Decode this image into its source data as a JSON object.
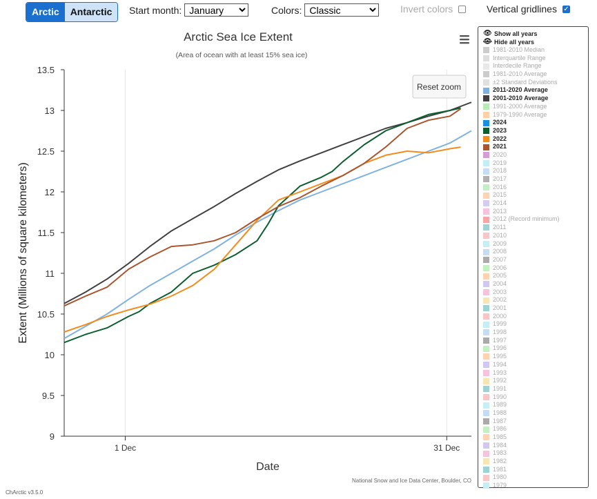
{
  "header": {
    "hemisphere_tabs": [
      {
        "label": "Arctic",
        "active": true
      },
      {
        "label": "Antarctic",
        "active": false
      }
    ],
    "start_month_label": "Start month:",
    "start_month_value": "January",
    "colors_label": "Colors:",
    "colors_value": "Classic",
    "invert_colors_label": "Invert colors",
    "invert_colors_checked": false,
    "vertical_gridlines_label": "Vertical gridlines",
    "vertical_gridlines_checked": true
  },
  "menu_icon": "hamburger-icon",
  "reset_zoom_label": "Reset zoom",
  "credit": "National Snow and Ice Data Center, Boulder, CO",
  "version": "ChArctic v3.5.0",
  "legend": {
    "show_all": "Show all years",
    "hide_all": "Hide all years",
    "items": [
      {
        "label": "1981-2010 Median",
        "color": "#cccccc",
        "on": false
      },
      {
        "label": "Interquartile Range",
        "color": "#dddddd",
        "on": false
      },
      {
        "label": "Interdecile Range",
        "color": "#e8e8e8",
        "on": false
      },
      {
        "label": "1981-2010 Average",
        "color": "#cccccc",
        "on": false
      },
      {
        "label": "±2 Standard Deviations",
        "color": "#e0e0e0",
        "on": false
      },
      {
        "label": "2011-2020 Average",
        "color": "#7fb2e0",
        "on": true
      },
      {
        "label": "2001-2010 Average",
        "color": "#404040",
        "on": true
      },
      {
        "label": "1991-2000 Average",
        "color": "#b8ebb8",
        "on": false
      },
      {
        "label": "1979-1990 Average",
        "color": "#fdd0a8",
        "on": false
      },
      {
        "label": "2024",
        "color": "#1b8ee0",
        "on": true
      },
      {
        "label": "2023",
        "color": "#0b5e2e",
        "on": true
      },
      {
        "label": "2022",
        "color": "#f28c1c",
        "on": true
      },
      {
        "label": "2021",
        "color": "#a9552e",
        "on": true
      },
      {
        "label": "2020",
        "color": "#d49ed4",
        "on": false
      },
      {
        "label": "2019",
        "color": "#c5edf5",
        "on": false
      },
      {
        "label": "2018",
        "color": "#c6dcf5",
        "on": false
      },
      {
        "label": "2017",
        "color": "#b0b0b0",
        "on": false
      },
      {
        "label": "2016",
        "color": "#c3efc3",
        "on": false
      },
      {
        "label": "2015",
        "color": "#fdd3b3",
        "on": false
      },
      {
        "label": "2014",
        "color": "#d4cdf0",
        "on": false
      },
      {
        "label": "2013",
        "color": "#f5c3dc",
        "on": false
      },
      {
        "label": "2012 (Record minimum)",
        "color": "#f5a7a7",
        "on": false
      },
      {
        "label": "2011",
        "color": "#9ed3d3",
        "on": false
      },
      {
        "label": "2010",
        "color": "#f7c6c6",
        "on": false
      },
      {
        "label": "2009",
        "color": "#c8eef5",
        "on": false
      },
      {
        "label": "2008",
        "color": "#c6dcf5",
        "on": false
      },
      {
        "label": "2007",
        "color": "#aaaaaa",
        "on": false
      },
      {
        "label": "2006",
        "color": "#c3efc3",
        "on": false
      },
      {
        "label": "2005",
        "color": "#fdd3b3",
        "on": false
      },
      {
        "label": "2004",
        "color": "#d0c8f0",
        "on": false
      },
      {
        "label": "2003",
        "color": "#f5c3dc",
        "on": false
      },
      {
        "label": "2002",
        "color": "#f5e6b3",
        "on": false
      },
      {
        "label": "2001",
        "color": "#9ed3d3",
        "on": false
      },
      {
        "label": "2000",
        "color": "#f7c6c6",
        "on": false
      },
      {
        "label": "1999",
        "color": "#c8eef5",
        "on": false
      },
      {
        "label": "1998",
        "color": "#c6dcf5",
        "on": false
      },
      {
        "label": "1997",
        "color": "#aaaaaa",
        "on": false
      },
      {
        "label": "1996",
        "color": "#c3efc3",
        "on": false
      },
      {
        "label": "1995",
        "color": "#fdd3b3",
        "on": false
      },
      {
        "label": "1994",
        "color": "#d0c8f0",
        "on": false
      },
      {
        "label": "1993",
        "color": "#f5c3dc",
        "on": false
      },
      {
        "label": "1992",
        "color": "#f5e6b3",
        "on": false
      },
      {
        "label": "1991",
        "color": "#9ed3d3",
        "on": false
      },
      {
        "label": "1990",
        "color": "#f7c6c6",
        "on": false
      },
      {
        "label": "1989",
        "color": "#c8eef5",
        "on": false
      },
      {
        "label": "1988",
        "color": "#c6dcf5",
        "on": false
      },
      {
        "label": "1987",
        "color": "#aaaaaa",
        "on": false
      },
      {
        "label": "1986",
        "color": "#c3efc3",
        "on": false
      },
      {
        "label": "1985",
        "color": "#fdd3b3",
        "on": false
      },
      {
        "label": "1984",
        "color": "#d0c8f0",
        "on": false
      },
      {
        "label": "1983",
        "color": "#f5c3dc",
        "on": false
      },
      {
        "label": "1982",
        "color": "#f5e6b3",
        "on": false
      },
      {
        "label": "1981",
        "color": "#9ed3d3",
        "on": false
      },
      {
        "label": "1980",
        "color": "#f7c6c6",
        "on": false
      },
      {
        "label": "1979",
        "color": "#c8eef5",
        "on": false
      }
    ]
  },
  "chart_data": {
    "type": "line",
    "title": "Arctic Sea Ice Extent",
    "subtitle": "(Area of ocean with at least 15% sea ice)",
    "xlabel": "Date",
    "ylabel": "Extent (Millions of square kilometers)",
    "xlim": [
      0,
      38
    ],
    "ylim": [
      9,
      13.5
    ],
    "yticks": [
      9,
      9.5,
      10,
      10.5,
      11,
      11.5,
      12,
      12.5,
      13,
      13.5
    ],
    "xticks": [
      {
        "x": 5.7,
        "label": "1 Dec"
      },
      {
        "x": 35.7,
        "label": "31 Dec"
      }
    ],
    "vertical_gridlines": true,
    "series": [
      {
        "name": "2011-2020 Average",
        "color": "#7fb2e0",
        "x": [
          0,
          2,
          4,
          6,
          8,
          10,
          12,
          14,
          16,
          18,
          20,
          22,
          24,
          26,
          28,
          30,
          32,
          34,
          36,
          38
        ],
        "y": [
          10.2,
          10.35,
          10.5,
          10.68,
          10.85,
          11.0,
          11.15,
          11.3,
          11.47,
          11.63,
          11.77,
          11.9,
          12.0,
          12.1,
          12.2,
          12.3,
          12.4,
          12.5,
          12.6,
          12.75
        ]
      },
      {
        "name": "2001-2010 Average",
        "color": "#404040",
        "x": [
          0,
          2,
          4,
          6,
          8,
          10,
          12,
          14,
          16,
          18,
          20,
          22,
          24,
          26,
          28,
          30,
          32,
          34,
          36,
          38
        ],
        "y": [
          10.63,
          10.77,
          10.93,
          11.12,
          11.33,
          11.52,
          11.67,
          11.82,
          11.98,
          12.13,
          12.27,
          12.38,
          12.48,
          12.58,
          12.68,
          12.78,
          12.85,
          12.93,
          13.0,
          13.1
        ]
      },
      {
        "name": "2023",
        "color": "#0b5e2e",
        "x": [
          0,
          2,
          4,
          6,
          7,
          8,
          10,
          12,
          14,
          16,
          18,
          19,
          20,
          22,
          24,
          25,
          26,
          28,
          30,
          32,
          34,
          36,
          37
        ],
        "y": [
          10.15,
          10.25,
          10.33,
          10.47,
          10.53,
          10.63,
          10.77,
          11.0,
          11.1,
          11.23,
          11.4,
          11.6,
          11.83,
          12.07,
          12.18,
          12.25,
          12.37,
          12.58,
          12.75,
          12.85,
          12.95,
          13.0,
          13.03
        ]
      },
      {
        "name": "2022",
        "color": "#f28c1c",
        "x": [
          0,
          2,
          4,
          6,
          8,
          10,
          12,
          14,
          16,
          18,
          20,
          22,
          24,
          26,
          28,
          30,
          32,
          34,
          36,
          37
        ],
        "y": [
          10.28,
          10.37,
          10.47,
          10.55,
          10.62,
          10.72,
          10.85,
          11.05,
          11.35,
          11.65,
          11.9,
          12.0,
          12.1,
          12.2,
          12.35,
          12.45,
          12.5,
          12.48,
          12.53,
          12.55
        ]
      },
      {
        "name": "2021",
        "color": "#a9552e",
        "x": [
          0,
          2,
          4,
          6,
          8,
          10,
          12,
          14,
          16,
          18,
          20,
          22,
          24,
          26,
          28,
          30,
          32,
          34,
          36,
          37
        ],
        "y": [
          10.6,
          10.72,
          10.83,
          11.05,
          11.2,
          11.33,
          11.35,
          11.4,
          11.5,
          11.67,
          11.82,
          11.93,
          12.07,
          12.2,
          12.35,
          12.55,
          12.78,
          12.88,
          12.93,
          13.02
        ]
      }
    ]
  }
}
